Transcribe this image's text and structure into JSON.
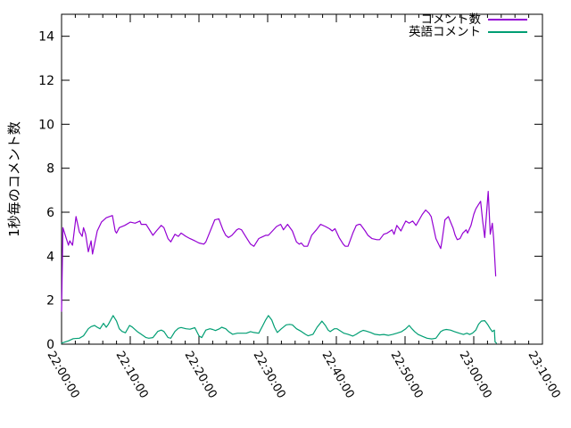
{
  "chart": {
    "background_color": "#ffffff",
    "axis_color": "#000000",
    "text_color": "#000000"
  },
  "chart_data": {
    "type": "line",
    "title": "",
    "xlabel": "",
    "ylabel": "1秒毎のコメント数",
    "grid": false,
    "legend_position": "top-right-inside",
    "ylim": [
      0,
      15
    ],
    "y_ticks": [
      0,
      2,
      4,
      6,
      8,
      10,
      12,
      14
    ],
    "xlim_minutes": [
      0,
      70
    ],
    "x_tick_minutes": [
      0,
      10,
      20,
      30,
      40,
      50,
      60,
      70
    ],
    "x_tick_labels": [
      "22:00:00",
      "22:10:00",
      "22:20:00",
      "22:30:00",
      "22:40:00",
      "22:50:00",
      "23:00:00",
      "23:10:00"
    ],
    "x_minor_tick_step_minutes": 2,
    "series": [
      {
        "name": "コメント数",
        "color": "#9400d3",
        "x": [
          0,
          0.2,
          0.5,
          1,
          1.2,
          1.6,
          2.1,
          2.6,
          3,
          3.2,
          3.5,
          3.9,
          4.3,
          4.5,
          5.2,
          5.8,
          6.5,
          7.4,
          7.8,
          8,
          8.4,
          9.2,
          10,
          10.7,
          11.4,
          11.6,
          12.3,
          12.7,
          13.3,
          13.8,
          14.5,
          14.9,
          15.5,
          15.9,
          16.5,
          17,
          17.4,
          18.1,
          18.7,
          19.4,
          20,
          20.7,
          21,
          22.3,
          22.9,
          23.5,
          23.9,
          24.3,
          24.8,
          25.5,
          25.8,
          26.2,
          26.9,
          27.5,
          28,
          28.7,
          29,
          29.7,
          30.1,
          30.7,
          31.3,
          31.9,
          32.3,
          32.9,
          33.6,
          34.2,
          34.6,
          34.9,
          35.3,
          35.8,
          36.4,
          37.1,
          37.7,
          38.4,
          39,
          39.4,
          39.8,
          40.4,
          41,
          41.3,
          41.7,
          42.4,
          42.9,
          43.3,
          43.5,
          44.2,
          44.6,
          45.2,
          45.9,
          46.3,
          46.9,
          47.4,
          48.1,
          48.4,
          48.8,
          49.4,
          49.7,
          50.1,
          50.6,
          51.1,
          51.6,
          52.5,
          53,
          53.5,
          53.8,
          54.5,
          55.2,
          55.4,
          55.8,
          56.3,
          57,
          57.3,
          57.6,
          58,
          58.4,
          58.9,
          59.1,
          59.6,
          60,
          60.3,
          60.6,
          61,
          61.3,
          61.6,
          62.1,
          62.4,
          62.7,
          62.9,
          63.2
        ],
        "y": [
          1.5,
          5.3,
          5.0,
          4.5,
          4.7,
          4.5,
          5.8,
          5.1,
          4.9,
          5.3,
          5.0,
          4.2,
          4.7,
          4.1,
          5.15,
          5.55,
          5.75,
          5.85,
          5.15,
          5.05,
          5.3,
          5.4,
          5.55,
          5.5,
          5.6,
          5.45,
          5.45,
          5.25,
          4.95,
          5.15,
          5.4,
          5.3,
          4.8,
          4.65,
          5.0,
          4.9,
          5.05,
          4.9,
          4.8,
          4.7,
          4.6,
          4.55,
          4.65,
          5.65,
          5.7,
          5.2,
          4.95,
          4.85,
          4.95,
          5.2,
          5.25,
          5.2,
          4.85,
          4.55,
          4.45,
          4.8,
          4.85,
          4.95,
          4.95,
          5.15,
          5.35,
          5.45,
          5.2,
          5.45,
          5.15,
          4.65,
          4.55,
          4.6,
          4.45,
          4.45,
          4.95,
          5.2,
          5.45,
          5.35,
          5.25,
          5.15,
          5.25,
          4.85,
          4.55,
          4.45,
          4.45,
          5.05,
          5.4,
          5.45,
          5.45,
          5.15,
          4.95,
          4.8,
          4.75,
          4.75,
          5.0,
          5.05,
          5.2,
          5.0,
          5.4,
          5.15,
          5.35,
          5.6,
          5.5,
          5.6,
          5.4,
          5.9,
          6.1,
          5.95,
          5.8,
          4.8,
          4.35,
          4.75,
          5.65,
          5.8,
          5.27,
          4.95,
          4.75,
          4.8,
          5.05,
          5.2,
          5.05,
          5.4,
          5.9,
          6.15,
          6.3,
          6.5,
          5.6,
          4.85,
          6.95,
          5.0,
          5.5,
          4.8,
          3.1
        ]
      },
      {
        "name": "英語コメント",
        "color": "#009e73",
        "x": [
          0,
          1,
          1.7,
          2.6,
          3.2,
          3.9,
          4.3,
          4.8,
          5.2,
          5.6,
          6.1,
          6.5,
          6.8,
          7.5,
          8,
          8.4,
          8.8,
          9.3,
          9.9,
          10.3,
          11,
          11.6,
          12.3,
          12.7,
          13.3,
          14,
          14.5,
          14.9,
          15.5,
          15.9,
          16.5,
          17,
          17.4,
          18.1,
          18.7,
          19.4,
          20,
          20.4,
          21,
          21.6,
          22,
          22.4,
          23,
          23.3,
          23.9,
          24.3,
          24.9,
          25.6,
          26.2,
          26.9,
          27.5,
          28,
          28.7,
          29.3,
          29.7,
          30.1,
          30.6,
          31,
          31.4,
          32,
          32.7,
          33.2,
          33.6,
          34.2,
          34.9,
          35.5,
          35.9,
          36.6,
          37.2,
          37.7,
          37.9,
          38.4,
          38.8,
          39.1,
          39.7,
          40.1,
          40.4,
          41.1,
          41.7,
          42.4,
          42.9,
          43.5,
          43.9,
          44.3,
          45,
          45.6,
          46.3,
          46.9,
          47.6,
          48.2,
          48.8,
          49.5,
          50.1,
          50.6,
          51,
          51.4,
          51.9,
          52.6,
          53.2,
          53.9,
          54.5,
          55.2,
          55.6,
          56,
          56.6,
          57.2,
          57.9,
          58.5,
          59,
          59.4,
          59.8,
          60.3,
          60.7,
          61.1,
          61.6,
          62,
          62.4,
          62.7,
          63,
          63.1,
          63.3
        ],
        "y": [
          0.05,
          0.15,
          0.25,
          0.27,
          0.38,
          0.7,
          0.8,
          0.85,
          0.77,
          0.7,
          0.95,
          0.77,
          0.9,
          1.3,
          1.05,
          0.7,
          0.58,
          0.52,
          0.85,
          0.78,
          0.58,
          0.45,
          0.3,
          0.27,
          0.3,
          0.58,
          0.64,
          0.58,
          0.3,
          0.27,
          0.58,
          0.72,
          0.76,
          0.7,
          0.68,
          0.75,
          0.38,
          0.3,
          0.64,
          0.7,
          0.67,
          0.62,
          0.7,
          0.77,
          0.7,
          0.58,
          0.45,
          0.5,
          0.5,
          0.5,
          0.57,
          0.53,
          0.5,
          0.85,
          1.1,
          1.3,
          1.1,
          0.77,
          0.53,
          0.7,
          0.88,
          0.9,
          0.88,
          0.7,
          0.58,
          0.45,
          0.38,
          0.45,
          0.77,
          0.97,
          1.05,
          0.85,
          0.64,
          0.57,
          0.7,
          0.7,
          0.64,
          0.5,
          0.45,
          0.37,
          0.45,
          0.57,
          0.63,
          0.6,
          0.53,
          0.45,
          0.42,
          0.44,
          0.4,
          0.44,
          0.5,
          0.57,
          0.7,
          0.85,
          0.7,
          0.57,
          0.44,
          0.35,
          0.27,
          0.24,
          0.27,
          0.57,
          0.64,
          0.67,
          0.64,
          0.57,
          0.5,
          0.44,
          0.5,
          0.44,
          0.5,
          0.64,
          0.91,
          1.05,
          1.07,
          0.91,
          0.7,
          0.57,
          0.64,
          0.1,
          0.05
        ]
      }
    ]
  }
}
